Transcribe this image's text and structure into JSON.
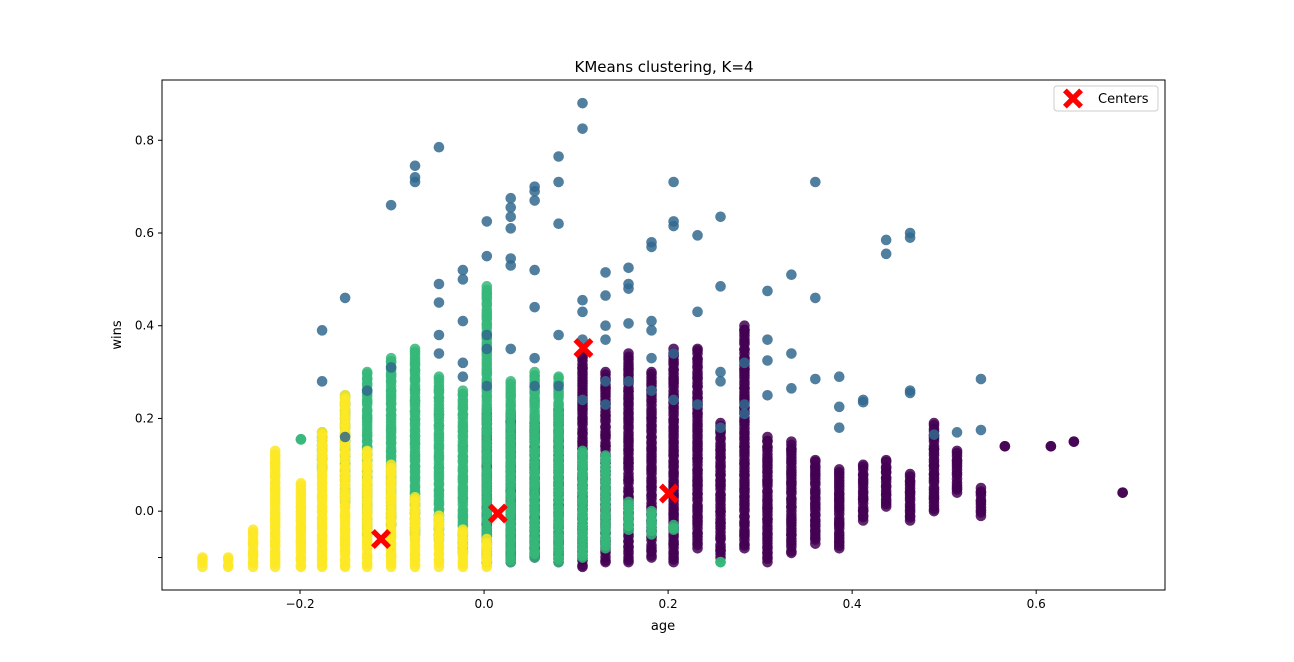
{
  "chart_data": {
    "type": "scatter",
    "title": "KMeans clustering, K=4",
    "xlabel": "age",
    "ylabel": "wins",
    "xlim": [
      -0.35,
      0.74
    ],
    "ylim": [
      -0.17,
      0.93
    ],
    "xticks": [
      -0.2,
      0.0,
      0.2,
      0.4,
      0.6
    ],
    "yticks": [
      -0.1,
      0.0,
      0.2,
      0.4,
      0.6,
      0.8
    ],
    "xtick_labels": [
      "−0.2",
      "0.0",
      "0.2",
      "0.4",
      "0.6"
    ],
    "ytick_labels": [
      "",
      "0.0",
      "0.2",
      "0.4",
      "0.6",
      "0.8"
    ],
    "grid": false,
    "legend_position": "top-right",
    "legend": [
      {
        "label": "Centers",
        "marker": "X",
        "color": "#ff0000"
      }
    ],
    "age_grid": [
      -0.306,
      -0.278,
      -0.251,
      -0.227,
      -0.199,
      -0.176,
      -0.151,
      -0.127,
      -0.101,
      -0.075,
      -0.049,
      -0.023,
      0.003,
      0.029,
      0.055,
      0.081,
      0.107,
      0.132,
      0.157,
      0.182,
      0.206,
      0.232,
      0.257,
      0.283,
      0.308,
      0.334,
      0.36,
      0.386,
      0.412,
      0.437,
      0.463,
      0.489,
      0.514,
      0.54,
      0.566,
      0.616,
      0.641,
      0.694
    ],
    "cluster_colors": [
      "#440154",
      "#31688e",
      "#35b779",
      "#fde725"
    ],
    "series": [
      {
        "cluster": 0,
        "color": "#440154",
        "columns": [
          {
            "x": 0.003,
            "y_min": -0.11,
            "y_max": 0.21
          },
          {
            "x": 0.029,
            "y_min": -0.11,
            "y_max": 0.21
          },
          {
            "x": 0.055,
            "y_min": -0.1,
            "y_max": 0.19
          },
          {
            "x": 0.081,
            "y_min": -0.11,
            "y_max": 0.22
          },
          {
            "x": 0.107,
            "y_min": -0.12,
            "y_max": 0.34
          },
          {
            "x": 0.132,
            "y_min": -0.11,
            "y_max": 0.3
          },
          {
            "x": 0.157,
            "y_min": -0.11,
            "y_max": 0.34
          },
          {
            "x": 0.182,
            "y_min": -0.1,
            "y_max": 0.3
          },
          {
            "x": 0.206,
            "y_min": -0.11,
            "y_max": 0.35
          },
          {
            "x": 0.232,
            "y_min": -0.08,
            "y_max": 0.35
          },
          {
            "x": 0.257,
            "y_min": -0.1,
            "y_max": 0.19
          },
          {
            "x": 0.283,
            "y_min": -0.08,
            "y_max": 0.4
          },
          {
            "x": 0.308,
            "y_min": -0.11,
            "y_max": 0.16
          },
          {
            "x": 0.334,
            "y_min": -0.09,
            "y_max": 0.15
          },
          {
            "x": 0.36,
            "y_min": -0.07,
            "y_max": 0.11
          },
          {
            "x": 0.386,
            "y_min": -0.08,
            "y_max": 0.09
          },
          {
            "x": 0.412,
            "y_min": -0.02,
            "y_max": 0.1
          },
          {
            "x": 0.437,
            "y_min": 0.01,
            "y_max": 0.11
          },
          {
            "x": 0.463,
            "y_min": -0.02,
            "y_max": 0.08
          },
          {
            "x": 0.489,
            "y_min": 0.0,
            "y_max": 0.19
          },
          {
            "x": 0.514,
            "y_min": 0.04,
            "y_max": 0.13
          },
          {
            "x": 0.54,
            "y_min": -0.01,
            "y_max": 0.05
          },
          {
            "x": 0.566,
            "y_min": 0.14,
            "y_max": 0.14
          },
          {
            "x": 0.616,
            "y_min": 0.14,
            "y_max": 0.14
          },
          {
            "x": 0.641,
            "y_min": 0.15,
            "y_max": 0.15
          },
          {
            "x": 0.694,
            "y_min": 0.04,
            "y_max": 0.04
          }
        ]
      },
      {
        "cluster": 1,
        "color": "#31688e",
        "points": [
          [
            -0.176,
            0.39
          ],
          [
            -0.176,
            0.28
          ],
          [
            -0.151,
            0.46
          ],
          [
            -0.151,
            0.16
          ],
          [
            -0.127,
            0.26
          ],
          [
            -0.101,
            0.66
          ],
          [
            -0.101,
            0.31
          ],
          [
            -0.075,
            0.745
          ],
          [
            -0.075,
            0.72
          ],
          [
            -0.075,
            0.71
          ],
          [
            -0.049,
            0.785
          ],
          [
            -0.049,
            0.49
          ],
          [
            -0.049,
            0.45
          ],
          [
            -0.049,
            0.38
          ],
          [
            -0.049,
            0.34
          ],
          [
            -0.023,
            0.52
          ],
          [
            -0.023,
            0.5
          ],
          [
            -0.023,
            0.41
          ],
          [
            -0.023,
            0.32
          ],
          [
            -0.023,
            0.29
          ],
          [
            0.003,
            0.625
          ],
          [
            0.003,
            0.55
          ],
          [
            0.003,
            0.38
          ],
          [
            0.003,
            0.35
          ],
          [
            0.003,
            0.27
          ],
          [
            0.029,
            0.675
          ],
          [
            0.029,
            0.655
          ],
          [
            0.029,
            0.635
          ],
          [
            0.029,
            0.61
          ],
          [
            0.029,
            0.545
          ],
          [
            0.029,
            0.53
          ],
          [
            0.029,
            0.35
          ],
          [
            0.055,
            0.7
          ],
          [
            0.055,
            0.69
          ],
          [
            0.055,
            0.67
          ],
          [
            0.055,
            0.52
          ],
          [
            0.055,
            0.44
          ],
          [
            0.055,
            0.33
          ],
          [
            0.055,
            0.27
          ],
          [
            0.081,
            0.765
          ],
          [
            0.081,
            0.71
          ],
          [
            0.081,
            0.62
          ],
          [
            0.081,
            0.38
          ],
          [
            0.081,
            0.27
          ],
          [
            0.107,
            0.88
          ],
          [
            0.107,
            0.825
          ],
          [
            0.107,
            0.455
          ],
          [
            0.107,
            0.43
          ],
          [
            0.107,
            0.37
          ],
          [
            0.107,
            0.24
          ],
          [
            0.132,
            0.515
          ],
          [
            0.132,
            0.465
          ],
          [
            0.132,
            0.4
          ],
          [
            0.132,
            0.37
          ],
          [
            0.132,
            0.28
          ],
          [
            0.132,
            0.23
          ],
          [
            0.157,
            0.525
          ],
          [
            0.157,
            0.49
          ],
          [
            0.157,
            0.48
          ],
          [
            0.157,
            0.405
          ],
          [
            0.157,
            0.28
          ],
          [
            0.182,
            0.58
          ],
          [
            0.182,
            0.57
          ],
          [
            0.182,
            0.41
          ],
          [
            0.182,
            0.39
          ],
          [
            0.182,
            0.33
          ],
          [
            0.182,
            0.26
          ],
          [
            0.206,
            0.71
          ],
          [
            0.206,
            0.625
          ],
          [
            0.206,
            0.615
          ],
          [
            0.206,
            0.34
          ],
          [
            0.206,
            0.24
          ],
          [
            0.232,
            0.595
          ],
          [
            0.232,
            0.43
          ],
          [
            0.232,
            0.23
          ],
          [
            0.257,
            0.635
          ],
          [
            0.257,
            0.485
          ],
          [
            0.257,
            0.3
          ],
          [
            0.257,
            0.28
          ],
          [
            0.257,
            0.18
          ],
          [
            0.283,
            0.32
          ],
          [
            0.283,
            0.23
          ],
          [
            0.283,
            0.21
          ],
          [
            0.308,
            0.475
          ],
          [
            0.308,
            0.37
          ],
          [
            0.308,
            0.325
          ],
          [
            0.308,
            0.25
          ],
          [
            0.334,
            0.51
          ],
          [
            0.334,
            0.34
          ],
          [
            0.334,
            0.265
          ],
          [
            0.36,
            0.71
          ],
          [
            0.36,
            0.46
          ],
          [
            0.36,
            0.285
          ],
          [
            0.386,
            0.29
          ],
          [
            0.386,
            0.225
          ],
          [
            0.386,
            0.18
          ],
          [
            0.412,
            0.24
          ],
          [
            0.412,
            0.235
          ],
          [
            0.437,
            0.585
          ],
          [
            0.437,
            0.555
          ],
          [
            0.463,
            0.6
          ],
          [
            0.463,
            0.59
          ],
          [
            0.463,
            0.26
          ],
          [
            0.463,
            0.255
          ],
          [
            0.489,
            0.165
          ],
          [
            0.514,
            0.17
          ],
          [
            0.54,
            0.285
          ],
          [
            0.54,
            0.175
          ]
        ]
      },
      {
        "cluster": 2,
        "color": "#35b779",
        "columns": [
          {
            "x": -0.199,
            "y_min": 0.155,
            "y_max": 0.155
          },
          {
            "x": -0.176,
            "y_min": 0.09,
            "y_max": 0.17
          },
          {
            "x": -0.151,
            "y_min": 0.02,
            "y_max": 0.25
          },
          {
            "x": -0.127,
            "y_min": -0.05,
            "y_max": 0.3
          },
          {
            "x": -0.101,
            "y_min": -0.03,
            "y_max": 0.33
          },
          {
            "x": -0.075,
            "y_min": -0.05,
            "y_max": 0.35
          },
          {
            "x": -0.049,
            "y_min": -0.06,
            "y_max": 0.29
          },
          {
            "x": -0.023,
            "y_min": -0.09,
            "y_max": 0.26
          },
          {
            "x": 0.003,
            "y_min": -0.11,
            "y_max": 0.485
          },
          {
            "x": 0.029,
            "y_min": -0.11,
            "y_max": 0.28
          },
          {
            "x": 0.055,
            "y_min": -0.1,
            "y_max": 0.3
          },
          {
            "x": 0.081,
            "y_min": -0.11,
            "y_max": 0.29
          },
          {
            "x": 0.107,
            "y_min": -0.1,
            "y_max": 0.13
          },
          {
            "x": 0.132,
            "y_min": -0.08,
            "y_max": 0.12
          },
          {
            "x": 0.157,
            "y_min": -0.04,
            "y_max": 0.02
          },
          {
            "x": 0.182,
            "y_min": -0.05,
            "y_max": 0.0
          },
          {
            "x": 0.206,
            "y_min": -0.04,
            "y_max": -0.03
          },
          {
            "x": 0.257,
            "y_min": -0.11,
            "y_max": -0.11
          }
        ]
      },
      {
        "cluster": 3,
        "color": "#fde725",
        "columns": [
          {
            "x": -0.306,
            "y_min": -0.12,
            "y_max": -0.1
          },
          {
            "x": -0.278,
            "y_min": -0.12,
            "y_max": -0.1
          },
          {
            "x": -0.251,
            "y_min": -0.12,
            "y_max": -0.04
          },
          {
            "x": -0.227,
            "y_min": -0.12,
            "y_max": 0.13
          },
          {
            "x": -0.199,
            "y_min": -0.12,
            "y_max": 0.06
          },
          {
            "x": -0.176,
            "y_min": -0.12,
            "y_max": 0.17
          },
          {
            "x": -0.151,
            "y_min": -0.12,
            "y_max": 0.25
          },
          {
            "x": -0.127,
            "y_min": -0.12,
            "y_max": 0.13
          },
          {
            "x": -0.101,
            "y_min": -0.12,
            "y_max": 0.1
          },
          {
            "x": -0.075,
            "y_min": -0.12,
            "y_max": 0.03
          },
          {
            "x": -0.049,
            "y_min": -0.12,
            "y_max": -0.01
          },
          {
            "x": -0.023,
            "y_min": -0.12,
            "y_max": -0.04
          },
          {
            "x": 0.003,
            "y_min": -0.12,
            "y_max": -0.06
          }
        ]
      }
    ],
    "centers": [
      {
        "x": -0.112,
        "y": -0.06
      },
      {
        "x": 0.015,
        "y": -0.005
      },
      {
        "x": 0.108,
        "y": 0.352
      },
      {
        "x": 0.201,
        "y": 0.038
      }
    ]
  }
}
